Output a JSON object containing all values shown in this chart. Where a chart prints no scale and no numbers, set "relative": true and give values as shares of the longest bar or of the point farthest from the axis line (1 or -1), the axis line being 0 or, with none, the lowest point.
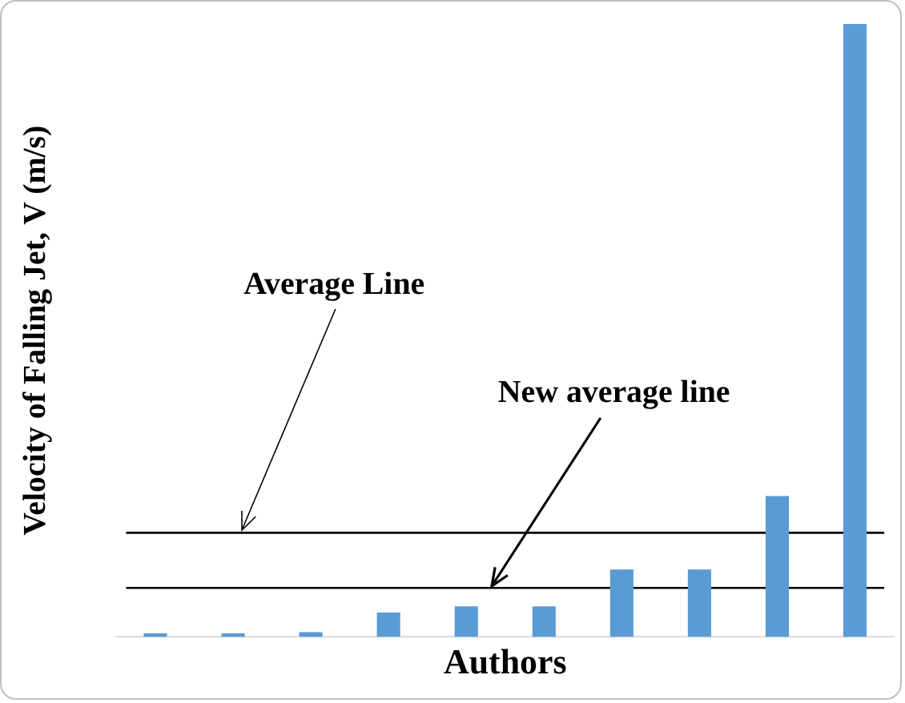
{
  "chart_data": {
    "type": "bar",
    "relative": true,
    "xlabel": "Authors",
    "ylabel": "Velocity of Falling Jet, V (m/s)",
    "categories": [
      null,
      null,
      null,
      null,
      null,
      null,
      null,
      null,
      null,
      null
    ],
    "values": [
      0.006,
      0.006,
      0.008,
      0.04,
      0.05,
      0.05,
      0.11,
      0.11,
      0.23,
      1
    ],
    "color": "#5b9bd5",
    "ref_lines": [
      {
        "axis": "y",
        "value": 0.17,
        "label": "Average Line",
        "color": "#000000"
      },
      {
        "axis": "y",
        "value": 0.08,
        "label": "New average line",
        "color": "#000000"
      }
    ],
    "grid": false,
    "legend": false
  }
}
